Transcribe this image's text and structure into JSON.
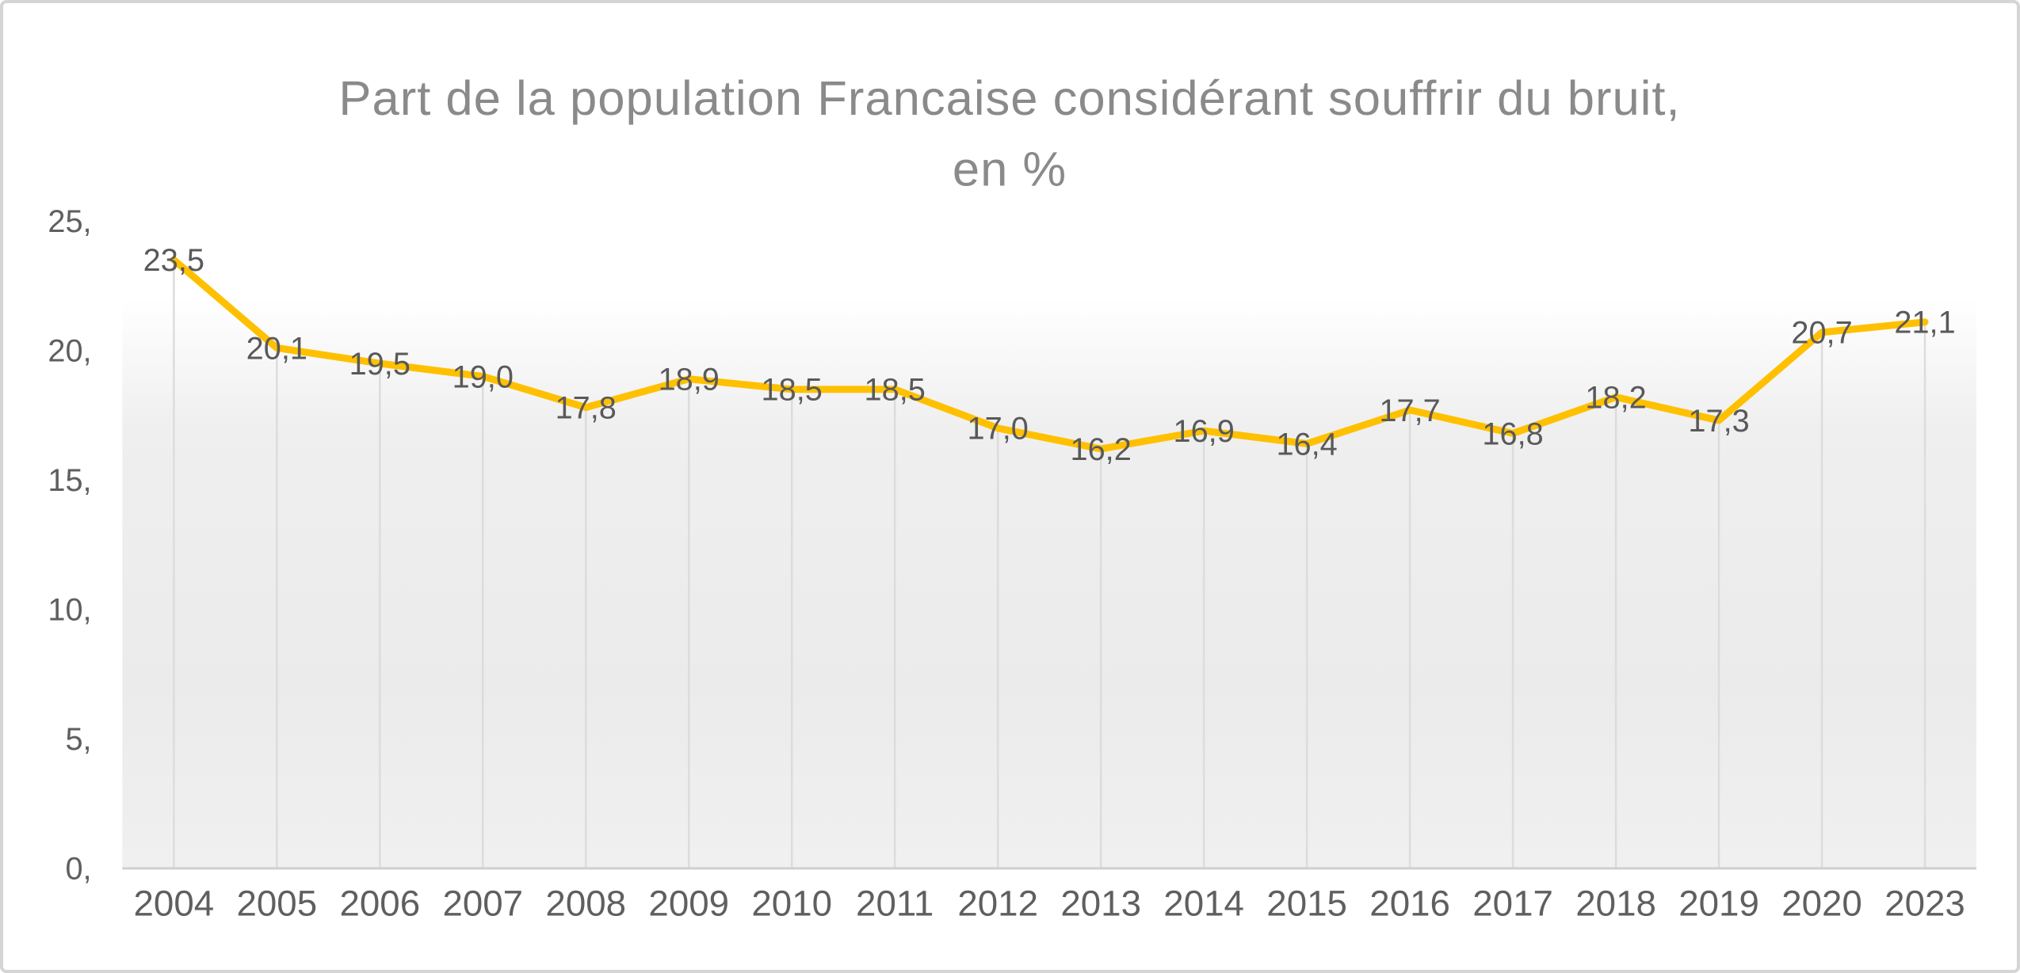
{
  "chart_data": {
    "type": "line",
    "title": "Part de la population Francaise considérant souffrir du bruit, en %",
    "title_line1": "Part de la population Francaise considérant souffrir du bruit,",
    "title_line2": "en %",
    "categories": [
      "2004",
      "2005",
      "2006",
      "2007",
      "2008",
      "2009",
      "2010",
      "2011",
      "2012",
      "2013",
      "2014",
      "2015",
      "2016",
      "2017",
      "2018",
      "2019",
      "2020",
      "2023"
    ],
    "values": [
      23.5,
      20.1,
      19.5,
      19.0,
      17.8,
      18.9,
      18.5,
      18.5,
      17.0,
      16.2,
      16.9,
      16.4,
      17.7,
      16.8,
      18.2,
      17.3,
      20.7,
      21.1
    ],
    "point_labels": [
      "23,5",
      "20,1",
      "19,5",
      "19,0",
      "17,8",
      "18,9",
      "18,5",
      "18,5",
      "17,0",
      "16,2",
      "16,9",
      "16,4",
      "17,7",
      "16,8",
      "18,2",
      "17,3",
      "20,7",
      "21,1"
    ],
    "y_tick_values": [
      0,
      5,
      10,
      15,
      20,
      25
    ],
    "y_tick_labels": [
      "0,",
      "5,",
      "10,",
      "15,",
      "20,",
      "25,"
    ],
    "ylim": [
      0,
      25
    ],
    "xlabel": "",
    "ylabel": "",
    "legend": "none",
    "grid": "vertical drop lines from each data point to the category axis",
    "decimal_separator": ","
  },
  "colors": {
    "line": "#FFC000",
    "point_label": "#595959",
    "axis_tick_label": "#5f5f5f",
    "title": "#8a8a8a",
    "axis_line": "#cfcfcf",
    "drop_line": "#dcdcdc",
    "card_border": "#d5d5d5",
    "plot_gradient_top": "#ffffff",
    "plot_gradient_mid": "#efefef",
    "plot_gradient_low": "#ebebeb",
    "plot_gradient_bottom": "#f0f0f0"
  }
}
